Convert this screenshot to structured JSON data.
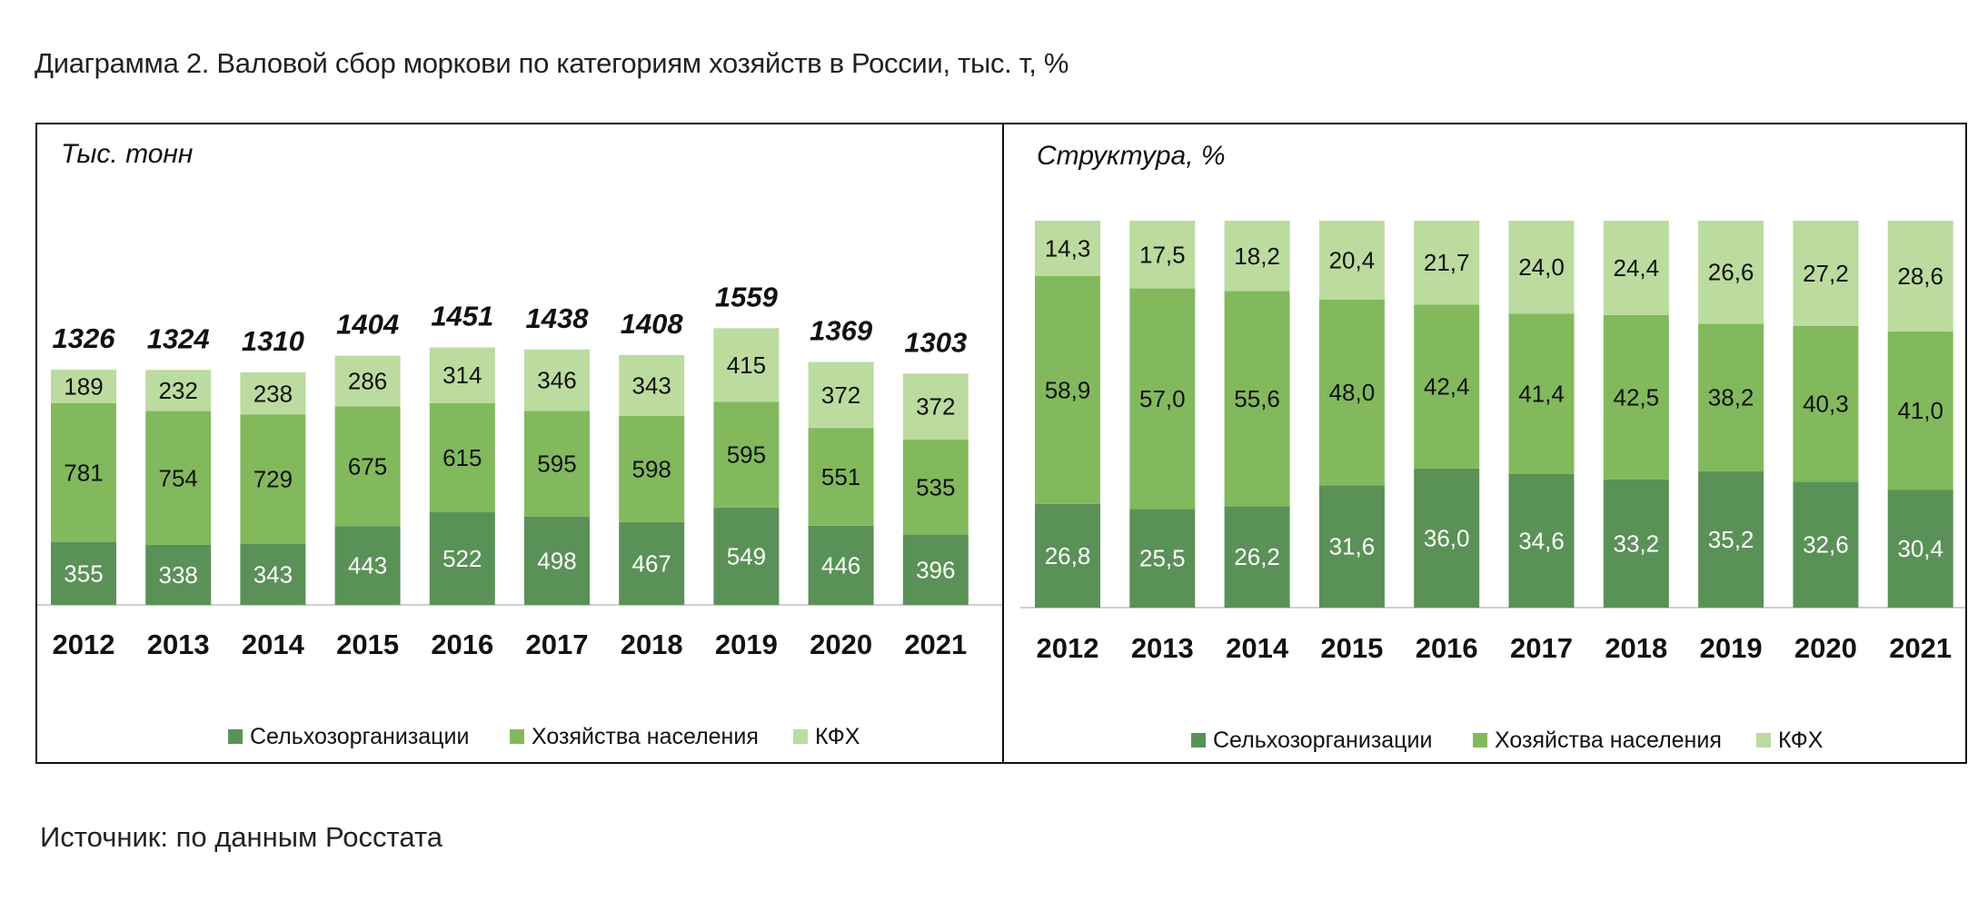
{
  "title": "Диаграмма 2. Валовой сбор моркови по категориям хозяйств в России, тыс. т, %",
  "source": "Источник: по данным Росстата",
  "colors": {
    "selkhoz": "#5a9157",
    "naselenie": "#82b95d",
    "kfh": "#bbdb9f"
  },
  "chart_data": [
    {
      "type": "bar",
      "stacked": true,
      "title": "Тыс. тонн",
      "categories": [
        "2012",
        "2013",
        "2014",
        "2015",
        "2016",
        "2017",
        "2018",
        "2019",
        "2020",
        "2021"
      ],
      "totals": [
        1326,
        1324,
        1310,
        1404,
        1451,
        1438,
        1408,
        1559,
        1369,
        1303
      ],
      "series": [
        {
          "name": "Сельхозорганизации",
          "values": [
            355,
            338,
            343,
            443,
            522,
            498,
            467,
            549,
            446,
            396
          ]
        },
        {
          "name": "Хозяйства населения",
          "values": [
            781,
            754,
            729,
            675,
            615,
            595,
            598,
            595,
            551,
            535
          ]
        },
        {
          "name": "КФХ",
          "values": [
            189,
            232,
            238,
            286,
            314,
            346,
            343,
            415,
            372,
            372
          ]
        }
      ],
      "legend": "bottom",
      "grid": false
    },
    {
      "type": "bar",
      "stacked": true,
      "percent": true,
      "title": "Структура, %",
      "categories": [
        "2012",
        "2013",
        "2014",
        "2015",
        "2016",
        "2017",
        "2018",
        "2019",
        "2020",
        "2021"
      ],
      "series": [
        {
          "name": "Сельхозорганизации",
          "values": [
            "26,8",
            "25,5",
            "26,2",
            "31,6",
            "36,0",
            "34,6",
            "33,2",
            "35,2",
            "32,6",
            "30,4"
          ]
        },
        {
          "name": "Хозяйства населения",
          "values": [
            "58,9",
            "57,0",
            "55,6",
            "48,0",
            "42,4",
            "41,4",
            "42,5",
            "38,2",
            "40,3",
            "41,0"
          ]
        },
        {
          "name": "КФХ",
          "values": [
            "14,3",
            "17,5",
            "18,2",
            "20,4",
            "21,7",
            "24,0",
            "24,4",
            "26,6",
            "27,2",
            "28,6"
          ]
        }
      ],
      "legend": "bottom",
      "grid": false
    }
  ]
}
